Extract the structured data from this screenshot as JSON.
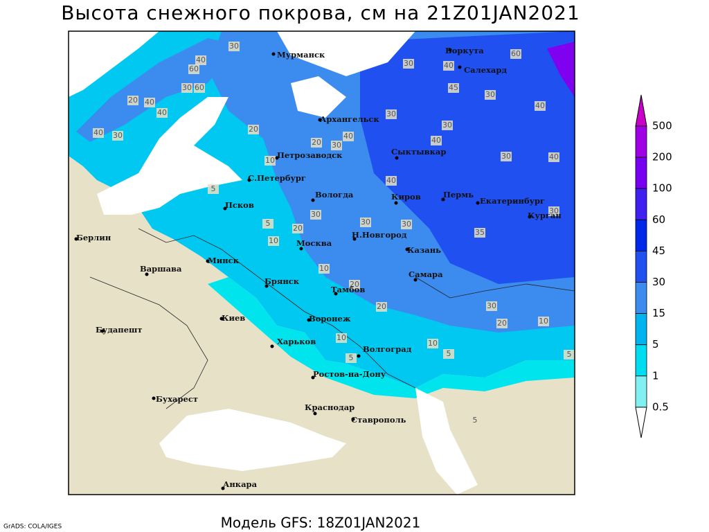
{
  "header": {
    "title": "Высота снежного покрова, см на 21Z01JAN2021"
  },
  "footer": {
    "model": "Модель GFS: 18Z01JAN2021",
    "credit": "GrADS: COLA/IGES"
  },
  "cities": [
    "Мурманск",
    "Воркута",
    "Салехард",
    "Архангельск",
    "Сыктывкар",
    "Петрозаводск",
    "С.Петербург",
    "Вологда",
    "Киров",
    "Пермь",
    "Екатеринбург",
    "Псков",
    "Курган",
    "Берлин",
    "Н.Новгород",
    "Москва",
    "Казань",
    "Минск",
    "Варшава",
    "Брянск",
    "Тамбов",
    "Самара",
    "Киев",
    "Воронеж",
    "Будапешт",
    "Харьков",
    "Волгоград",
    "Ростов-на-Дону",
    "Бухарест",
    "Краснодар",
    "Ставрополь",
    "Анкара"
  ],
  "contour_labels": [
    "30",
    "40",
    "60",
    "30",
    "60",
    "20",
    "40",
    "40",
    "40",
    "30",
    "20",
    "20",
    "30",
    "40",
    "30",
    "40",
    "60",
    "45",
    "30",
    "40",
    "30",
    "30",
    "40",
    "30",
    "40",
    "10",
    "5",
    "40",
    "30",
    "20",
    "30",
    "30",
    "10",
    "5",
    "10",
    "20",
    "20",
    "30",
    "20",
    "10",
    "10",
    "10",
    "5",
    "5",
    "5",
    "5",
    "30",
    "35"
  ],
  "legend": {
    "labels": [
      "500",
      "200",
      "100",
      "60",
      "45",
      "30",
      "15",
      "5",
      "1",
      "0.5"
    ]
  }
}
